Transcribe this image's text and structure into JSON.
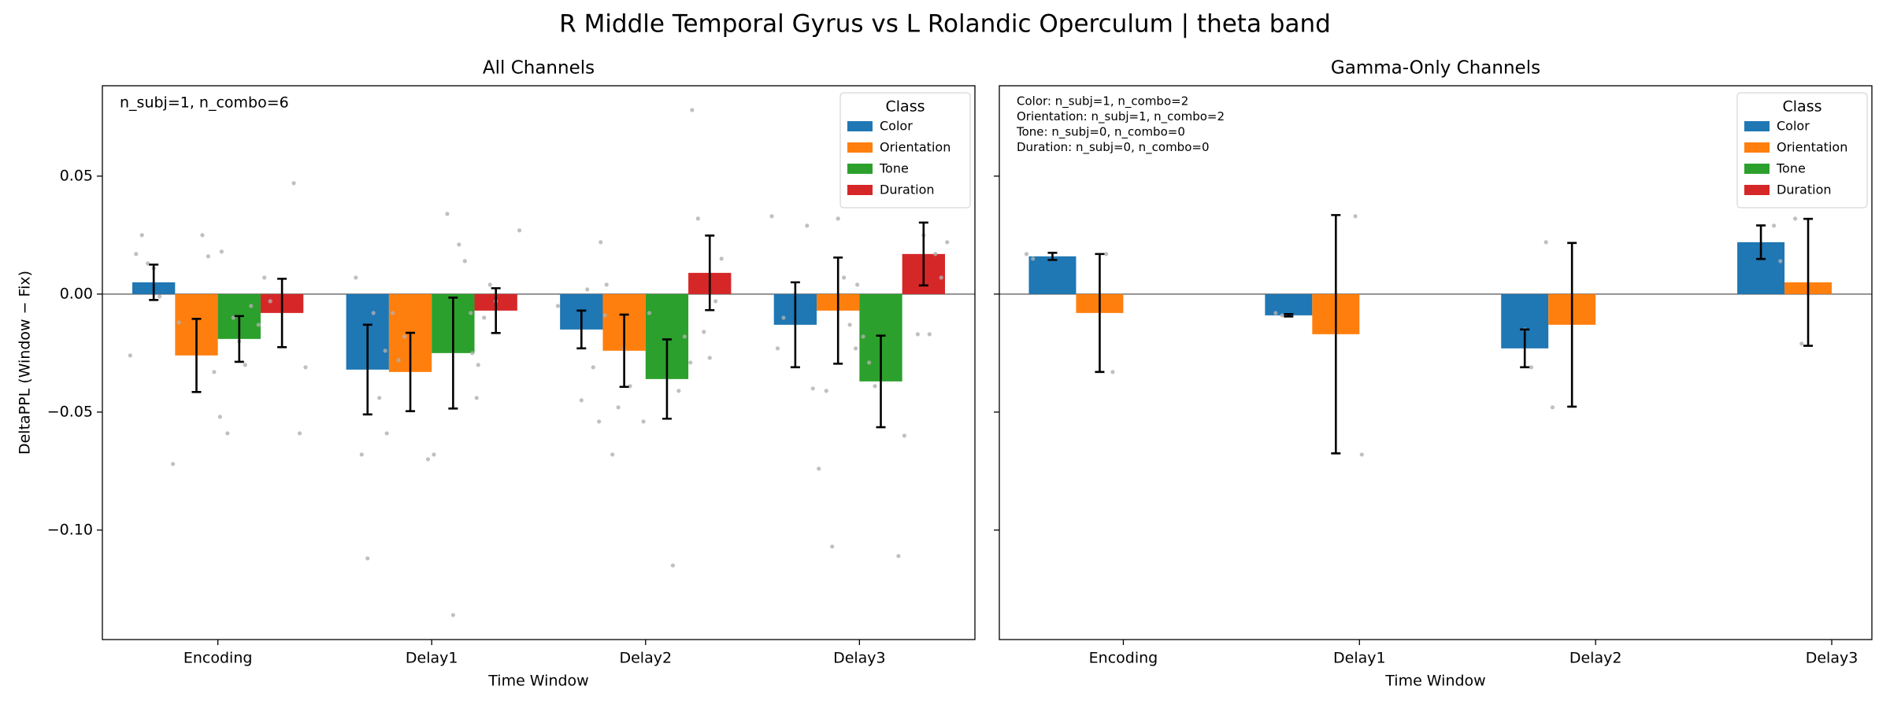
{
  "title": "R Middle Temporal Gyrus vs L Rolandic Operculum  |  theta band",
  "chart_data": [
    {
      "type": "bar",
      "title": "All Channels",
      "xlabel": "Time Window",
      "ylabel": "DeltaPPL (Window − Fix)",
      "categories": [
        "Encoding",
        "Delay1",
        "Delay2",
        "Delay3"
      ],
      "ylim": [
        -0.1464,
        0.0883
      ],
      "yticks": [
        {
          "value": -0.1,
          "label": "−0.10"
        },
        {
          "value": -0.05,
          "label": "−0.05"
        },
        {
          "value": 0,
          "label": "0.00"
        },
        {
          "value": 0.05,
          "label": "0.05"
        }
      ],
      "ytick_labels": true,
      "hline": 0,
      "legend_title": "Class",
      "legend": "upper right",
      "annotation": [
        "n_subj=1, n_combo=6"
      ],
      "series": [
        {
          "name": "Color",
          "color": "#1f77b4",
          "values": [
            0.005,
            -0.032,
            -0.015,
            -0.013
          ],
          "errors": [
            0.0075,
            0.019,
            0.008,
            0.018
          ],
          "points": [
            [
              -0.026,
              0.017,
              0.025,
              0.013,
              0.011,
              -0.001
            ],
            [
              0.007,
              -0.068,
              -0.112,
              -0.008,
              -0.044,
              -0.024
            ],
            [
              -0.045,
              0.002,
              -0.031,
              -0.054,
              -0.009,
              -0.005
            ],
            [
              0.029,
              -0.04,
              -0.074,
              0.033,
              -0.023,
              -0.01
            ]
          ]
        },
        {
          "name": "Orientation",
          "color": "#ff7f0e",
          "values": [
            -0.026,
            -0.033,
            -0.024,
            -0.007
          ],
          "errors": [
            0.0155,
            0.0166,
            0.0153,
            0.0225
          ],
          "points": [
            [
              0.025,
              0.016,
              -0.033,
              -0.052,
              -0.072,
              -0.012
            ],
            [
              -0.07,
              -0.068,
              -0.059,
              -0.008,
              -0.028,
              -0.018
            ],
            [
              0.022,
              0.004,
              -0.068,
              -0.048,
              -0.023,
              -0.039
            ],
            [
              -0.041,
              -0.107,
              0.032,
              0.007,
              -0.013,
              -0.023
            ]
          ]
        },
        {
          "name": "Tone",
          "color": "#2ca02c",
          "values": [
            -0.019,
            -0.025,
            -0.036,
            -0.037
          ],
          "errors": [
            0.0097,
            0.0235,
            0.0168,
            0.0194
          ],
          "points": [
            [
              0.018,
              -0.059,
              -0.01,
              -0.02,
              -0.03,
              -0.005
            ],
            [
              0.034,
              -0.136,
              0.021,
              0.014,
              -0.008,
              -0.044
            ],
            [
              -0.115,
              -0.041,
              -0.018,
              -0.029,
              -0.054,
              -0.008
            ],
            [
              -0.111,
              -0.06,
              0.004,
              -0.018,
              -0.029,
              -0.039
            ]
          ]
        },
        {
          "name": "Duration",
          "color": "#d62728",
          "values": [
            -0.008,
            -0.007,
            0.009,
            0.017
          ],
          "errors": [
            0.0145,
            0.0095,
            0.0158,
            0.0133
          ],
          "points": [
            [
              0.047,
              -0.059,
              -0.031,
              -0.013,
              0.007,
              -0.003
            ],
            [
              0.027,
              -0.025,
              -0.03,
              -0.01,
              0.004,
              -0.003
            ],
            [
              0.078,
              0.032,
              -0.016,
              -0.027,
              -0.003,
              0.015
            ],
            [
              -0.017,
              0.025,
              -0.017,
              0.017,
              0.007,
              0.022
            ]
          ]
        }
      ]
    },
    {
      "type": "bar",
      "title": "Gamma-Only Channels",
      "xlabel": "Time Window",
      "categories": [
        "Encoding",
        "Delay1",
        "Delay2",
        "Delay3"
      ],
      "ylim": [
        -0.1464,
        0.0883
      ],
      "yticks": [
        -0.1,
        -0.05,
        0,
        0.05
      ],
      "ytick_labels": false,
      "hline": 0,
      "legend_title": "Class",
      "legend": "upper right",
      "annotation": [
        "Color: n_subj=1, n_combo=2",
        "Orientation: n_subj=1, n_combo=2",
        "Tone: n_subj=0, n_combo=0",
        "Duration: n_subj=0, n_combo=0"
      ],
      "series": [
        {
          "name": "Color",
          "color": "#1f77b4",
          "values": [
            0.016,
            -0.009,
            -0.023,
            0.022
          ],
          "errors": [
            0.0015,
            0.0005,
            0.008,
            0.0071
          ],
          "points": [
            [
              0.017,
              0.015
            ],
            [
              -0.008,
              -0.009
            ],
            [
              -0.015,
              -0.031
            ],
            [
              0.029,
              0.014
            ]
          ]
        },
        {
          "name": "Orientation",
          "color": "#ff7f0e",
          "values": [
            -0.008,
            -0.017,
            -0.013,
            0.005
          ],
          "errors": [
            0.025,
            0.0505,
            0.0347,
            0.0269
          ],
          "points": [
            [
              0.017,
              -0.033
            ],
            [
              0.033,
              -0.068
            ],
            [
              0.022,
              -0.048
            ],
            [
              0.032,
              -0.021
            ]
          ]
        },
        {
          "name": "Tone",
          "color": "#2ca02c",
          "values": [
            null,
            null,
            null,
            null
          ],
          "errors": [
            null,
            null,
            null,
            null
          ],
          "points": null
        },
        {
          "name": "Duration",
          "color": "#d62728",
          "values": [
            null,
            null,
            null,
            null
          ],
          "errors": [
            null,
            null,
            null,
            null
          ],
          "points": null
        }
      ]
    }
  ]
}
